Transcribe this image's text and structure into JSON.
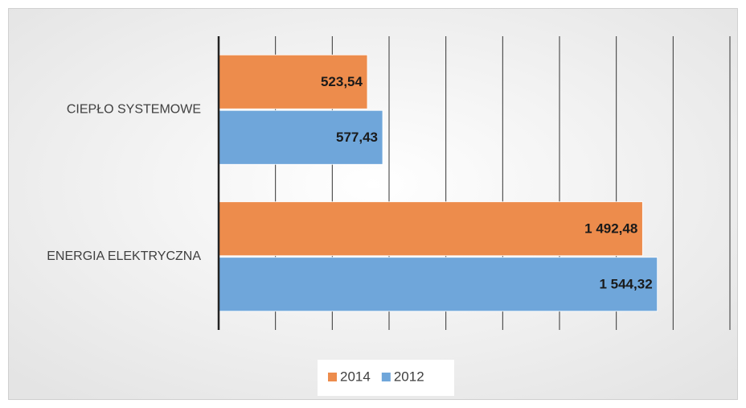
{
  "chart_data": {
    "type": "hbar",
    "categories": [
      "CIEPŁO SYSTEMOWE",
      "ENERGIA ELEKTRYCZNA"
    ],
    "series": [
      {
        "name": "2014",
        "color": "#ed8c4c",
        "values": [
          523.54,
          1492.48
        ],
        "value_labels": [
          "523,54",
          "1 492,48"
        ]
      },
      {
        "name": "2012",
        "color": "#6fa6da",
        "values": [
          577.43,
          1544.32
        ],
        "value_labels": [
          "577,43",
          "1 544,32"
        ]
      }
    ],
    "xlim": [
      0,
      1800
    ],
    "xticks": [
      0,
      200,
      400,
      600,
      800,
      1000,
      1200,
      1400,
      1600,
      1800
    ],
    "grid": true,
    "legend": "bottom"
  }
}
